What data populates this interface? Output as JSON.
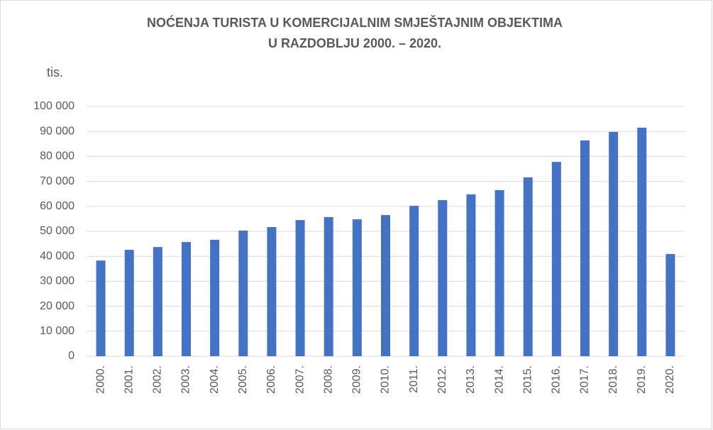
{
  "chart_data": {
    "type": "bar",
    "title": [
      "NOĆENJA TURISTA U KOMERCIJALNIM SMJEŠTAJNIM OBJEKTIMA",
      "U RAZDOBLJU 2000. – 2020."
    ],
    "y_label": "tis.",
    "categories": [
      "2000.",
      "2001.",
      "2002.",
      "2003.",
      "2004.",
      "2005.",
      "2006.",
      "2007.",
      "2008.",
      "2009.",
      "2010.",
      "2011.",
      "2012.",
      "2013.",
      "2014.",
      "2015.",
      "2016.",
      "2017.",
      "2018.",
      "2019.",
      "2020."
    ],
    "values": [
      38300,
      42600,
      43700,
      45700,
      46600,
      50300,
      51700,
      54500,
      55700,
      54800,
      56500,
      60200,
      62500,
      64800,
      66500,
      71600,
      77800,
      86400,
      89800,
      91500,
      40900
    ],
    "color": "#4472c4",
    "ylim": [
      0,
      100000
    ],
    "yticks": [
      0,
      {
        "value": 10000,
        "label": "10 000"
      },
      {
        "value": 20000,
        "label": "20 000"
      },
      {
        "value": 30000,
        "label": "30 000"
      },
      {
        "value": 40000,
        "label": "40 000"
      },
      {
        "value": 50000,
        "label": "50 000"
      },
      {
        "value": 60000,
        "label": "60 000"
      },
      {
        "value": 70000,
        "label": "70 000"
      },
      {
        "value": 80000,
        "label": "80 000"
      },
      {
        "value": 90000,
        "label": "90 000"
      },
      {
        "value": 100000,
        "label": "100 000"
      }
    ],
    "grid": true
  }
}
